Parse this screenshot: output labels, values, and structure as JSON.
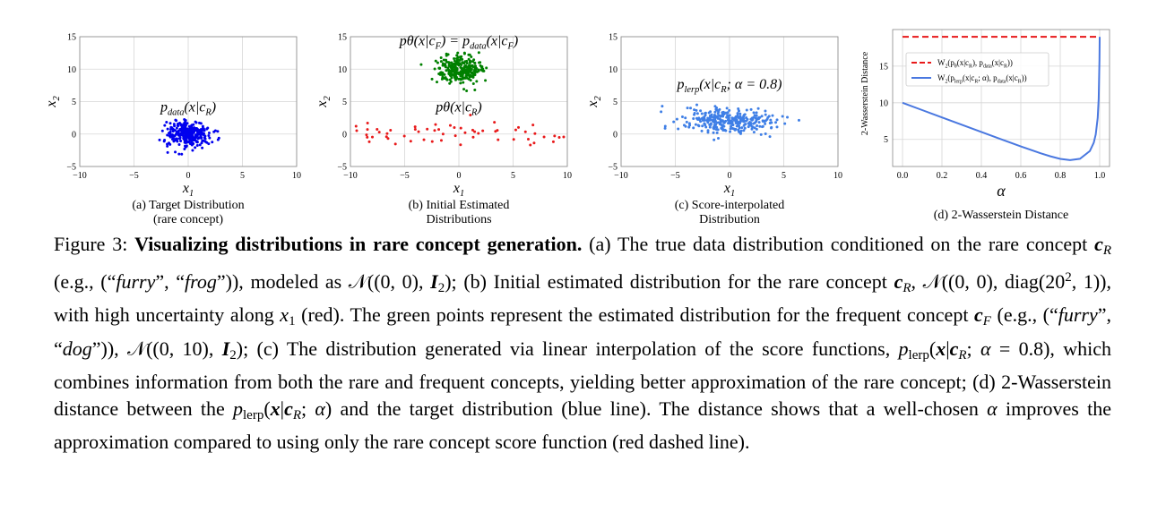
{
  "chart_data": [
    {
      "type": "scatter",
      "panel": "a",
      "caption": [
        "(a) Target Distribution",
        "(rare concept)"
      ],
      "xlabel": "x1",
      "ylabel": "x2",
      "xlim": [
        -10,
        10
      ],
      "ylim": [
        -5,
        15
      ],
      "xticks": [
        "−10",
        "−5",
        "0",
        "5",
        "10"
      ],
      "yticks": [
        "−5",
        "0",
        "5",
        "10",
        "15"
      ],
      "grid": true,
      "annotations": [
        {
          "text": "p_data(x|c_R)",
          "x": 0,
          "y": 3.5
        }
      ],
      "series": [
        {
          "distribution": {
            "mean": [
              0,
              0
            ],
            "std": [
              1,
              1
            ],
            "n": 300
          },
          "color": "#0000ee"
        }
      ]
    },
    {
      "type": "scatter",
      "panel": "b",
      "caption": [
        "(b) Initial Estimated",
        "Distributions"
      ],
      "xlabel": "x1",
      "ylabel": "x2",
      "xlim": [
        -10,
        10
      ],
      "ylim": [
        -5,
        15
      ],
      "xticks": [
        "−10",
        "−5",
        "0",
        "5",
        "10"
      ],
      "yticks": [
        "−5",
        "0",
        "5",
        "10",
        "15"
      ],
      "grid": true,
      "annotations": [
        {
          "text": "pθ(x|c_F) = p_data(x|c_F)",
          "x": 0,
          "y": 13.7
        },
        {
          "text": "pθ(x|c_R)",
          "x": 0,
          "y": 3.5
        }
      ],
      "series": [
        {
          "distribution": {
            "mean": [
              0,
              10
            ],
            "std": [
              1,
              1
            ],
            "n": 300
          },
          "color": "#008000"
        },
        {
          "distribution": {
            "mean": [
              0,
              0
            ],
            "std": [
              20,
              1
            ],
            "n": 150
          },
          "color": "#e8191a"
        }
      ]
    },
    {
      "type": "scatter",
      "panel": "c",
      "caption": [
        "(c) Score-interpolated",
        "Distribution"
      ],
      "xlabel": "x1",
      "ylabel": "x2",
      "xlim": [
        -10,
        10
      ],
      "ylim": [
        -5,
        15
      ],
      "xticks": [
        "−10",
        "−5",
        "0",
        "5",
        "10"
      ],
      "yticks": [
        "−5",
        "0",
        "5",
        "10",
        "15"
      ],
      "grid": true,
      "annotations": [
        {
          "text": "p_lerp(x|c_R; α = 0.8)",
          "x": 0,
          "y": 7
        }
      ],
      "series": [
        {
          "distribution": {
            "mean": [
              0,
              2
            ],
            "std": [
              2.22,
              1
            ],
            "n": 300
          },
          "color": "#3f7fe6"
        }
      ]
    },
    {
      "type": "line",
      "panel": "d",
      "caption": [
        "(d) 2-Wasserstein Distance"
      ],
      "xlabel": "α",
      "ylabel": "2-Wasserstein Distance",
      "xlim": [
        -0.05,
        1.05
      ],
      "ylim": [
        1.3,
        20
      ],
      "xticks": [
        "0.0",
        "0.2",
        "0.4",
        "0.6",
        "0.8",
        "1.0"
      ],
      "yticks": [
        5,
        10,
        15
      ],
      "grid": true,
      "legend": "top-left",
      "series": [
        {
          "name": "W2(pθ(x|c_R), p_data(x|c_R))",
          "style": "dashed",
          "color": "#e8191a",
          "x": [
            0,
            1
          ],
          "y": [
            19,
            19
          ]
        },
        {
          "name": "W2(p_lerp(x|c_R; α), p_data(x|c_R))",
          "style": "solid",
          "color": "#4a78e0",
          "x": [
            0,
            0.1,
            0.2,
            0.3,
            0.4,
            0.5,
            0.6,
            0.7,
            0.75,
            0.8,
            0.85,
            0.9,
            0.95,
            0.97,
            0.98,
            0.99,
            0.995,
            0.999,
            1.0
          ],
          "y": [
            10,
            9.0,
            8.001,
            7.003,
            6.007,
            5.017,
            4.042,
            3.11,
            2.69,
            2.34,
            2.167,
            2.35,
            3.407,
            4.542,
            5.678,
            7.954,
            10.557,
            15.909,
            19
          ]
        }
      ]
    }
  ],
  "legend_labels": {
    "red": [
      "W",
      "2",
      "(p",
      "θ",
      "(x|c",
      "R",
      "), p",
      "data",
      "(x|c",
      "R",
      "))"
    ],
    "blue": [
      "W",
      "2",
      "(p",
      "lerp",
      "(x|c",
      "R",
      "; α), p",
      "data",
      "(x|c",
      "R",
      "))"
    ]
  },
  "caption": [
    [
      "Figure 3: ",
      "n"
    ],
    [
      "Visualizing distributions in rare concept generation.",
      "b"
    ],
    [
      " (a) The true data distribution conditioned on the rare concept ",
      "n"
    ],
    [
      "c",
      "bi"
    ],
    [
      "R",
      "subi"
    ],
    [
      " (e.g., (“",
      "n"
    ],
    [
      "furry",
      "i"
    ],
    [
      "”, “",
      "n"
    ],
    [
      "frog",
      "i"
    ],
    [
      "”)), modeled as 𝒩((0, 0), ",
      "n"
    ],
    [
      "I",
      "bi"
    ],
    [
      "2",
      "sub"
    ],
    [
      "); (b) Initial estimated distribution for the rare concept ",
      "n"
    ],
    [
      "c",
      "bi"
    ],
    [
      "R",
      "subi"
    ],
    [
      ", 𝒩((0, 0), diag(20",
      "n"
    ],
    [
      "2",
      "sup"
    ],
    [
      ", 1)), with high uncertainty along ",
      "n"
    ],
    [
      "x",
      "i"
    ],
    [
      "1",
      "sub"
    ],
    [
      " (red). The green points represent the estimated distribution for the frequent concept ",
      "n"
    ],
    [
      "c",
      "bi"
    ],
    [
      "F",
      "subi"
    ],
    [
      " (e.g., (“",
      "n"
    ],
    [
      "furry",
      "i"
    ],
    [
      "”, “",
      "n"
    ],
    [
      "dog",
      "i"
    ],
    [
      "”)), 𝒩((0, 10), ",
      "n"
    ],
    [
      "I",
      "bi"
    ],
    [
      "2",
      "sub"
    ],
    [
      "); (c) The distribution generated via linear interpolation of the score functions, ",
      "n"
    ],
    [
      "p",
      "i"
    ],
    [
      "lerp",
      "sub"
    ],
    [
      "(",
      "n"
    ],
    [
      "x",
      "bi"
    ],
    [
      "|",
      "n"
    ],
    [
      "c",
      "bi"
    ],
    [
      "R",
      "subi"
    ],
    [
      "; ",
      "n"
    ],
    [
      "α",
      "i"
    ],
    [
      " = 0.8), which combines information from both the rare and frequent concepts, yielding better approximation of the rare concept; (d) 2-Wasserstein distance between the ",
      "n"
    ],
    [
      "p",
      "i"
    ],
    [
      "lerp",
      "sub"
    ],
    [
      "(",
      "n"
    ],
    [
      "x",
      "bi"
    ],
    [
      "|",
      "n"
    ],
    [
      "c",
      "bi"
    ],
    [
      "R",
      "subi"
    ],
    [
      "; ",
      "n"
    ],
    [
      "α",
      "i"
    ],
    [
      ") and the target distribution (blue line). The distance shows that a well-chosen ",
      "n"
    ],
    [
      "α",
      "i"
    ],
    [
      " improves the approximation compared to using only the rare concept score function (red dashed line).",
      "n"
    ]
  ]
}
